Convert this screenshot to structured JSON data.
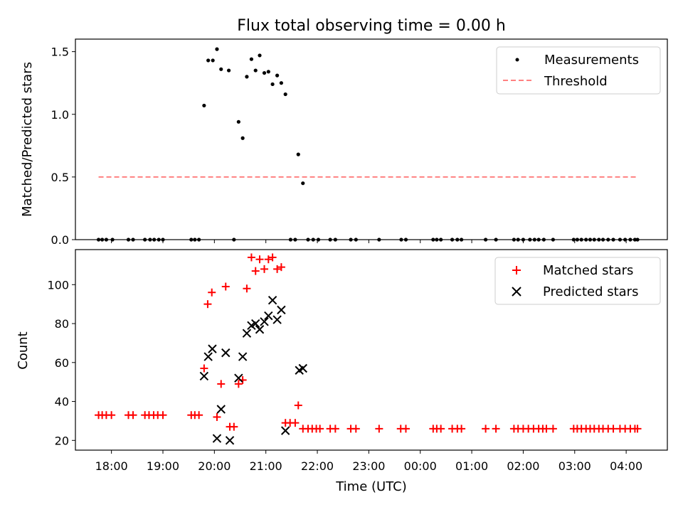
{
  "chart_data": [
    {
      "type": "scatter",
      "title": "Flux total observing time = 0.00 h",
      "xlabel": "",
      "ylabel": "Matched/Predicted stars",
      "xlim": [
        17.3,
        28.8
      ],
      "ylim": [
        0,
        1.6
      ],
      "yticks": [
        0.0,
        0.5,
        1.0,
        1.5
      ],
      "ytick_labels": [
        "0.0",
        "0.5",
        "1.0",
        "1.5"
      ],
      "legend_position": "top-right",
      "series": [
        {
          "name": "Measurements",
          "color": "#000000",
          "marker": "dot",
          "x": [
            17.75,
            17.82,
            17.9,
            18.02,
            18.33,
            18.42,
            18.65,
            18.75,
            18.83,
            18.92,
            19.0,
            19.55,
            19.62,
            19.7,
            19.8,
            19.88,
            19.97,
            20.05,
            20.13,
            20.28,
            20.38,
            20.47,
            20.55,
            20.63,
            20.72,
            20.8,
            20.88,
            20.97,
            21.05,
            21.13,
            21.22,
            21.3,
            21.38,
            21.48,
            21.57,
            21.63,
            21.72,
            21.82,
            21.92,
            22.02,
            22.25,
            22.35,
            22.65,
            22.75,
            23.2,
            23.63,
            23.72,
            24.25,
            24.32,
            24.4,
            24.62,
            24.72,
            24.8,
            25.27,
            25.47,
            25.82,
            25.9,
            26.0,
            26.13,
            26.22,
            26.3,
            26.4,
            26.58,
            26.98,
            27.05,
            27.13,
            27.22,
            27.3,
            27.38,
            27.47,
            27.55,
            27.65,
            27.75,
            27.88,
            27.98,
            28.08,
            28.17,
            28.22
          ],
          "y": [
            0,
            0,
            0,
            0,
            0,
            0,
            0,
            0,
            0,
            0,
            0,
            0,
            0,
            0,
            1.07,
            1.43,
            1.43,
            1.52,
            1.36,
            1.35,
            0,
            0.94,
            0.81,
            1.3,
            1.44,
            1.35,
            1.47,
            1.33,
            1.34,
            1.24,
            1.31,
            1.25,
            1.16,
            0,
            0,
            0.68,
            0.45,
            0,
            0,
            0,
            0,
            0,
            0,
            0,
            0,
            0,
            0,
            0,
            0,
            0,
            0,
            0,
            0,
            0,
            0,
            0,
            0,
            0,
            0,
            0,
            0,
            0,
            0,
            0,
            0,
            0,
            0,
            0,
            0,
            0,
            0,
            0,
            0,
            0,
            0,
            0,
            0,
            0
          ]
        },
        {
          "name": "Threshold",
          "color": "#ff8080",
          "style": "dashed",
          "x": [
            17.75,
            28.22
          ],
          "y": [
            0.5,
            0.5
          ]
        }
      ]
    },
    {
      "type": "scatter",
      "title": "",
      "xlabel": "Time (UTC)",
      "ylabel": "Count",
      "xlim": [
        17.3,
        28.8
      ],
      "ylim": [
        15,
        118
      ],
      "yticks": [
        20,
        40,
        60,
        80,
        100
      ],
      "ytick_labels": [
        "20",
        "40",
        "60",
        "80",
        "100"
      ],
      "xticks": [
        18,
        19,
        20,
        21,
        22,
        23,
        24,
        25,
        26,
        27,
        28
      ],
      "xtick_labels": [
        "18:00",
        "19:00",
        "20:00",
        "21:00",
        "22:00",
        "23:00",
        "00:00",
        "01:00",
        "02:00",
        "03:00",
        "04:00"
      ],
      "legend_position": "top-right",
      "series": [
        {
          "name": "Matched stars",
          "color": "#ff0000",
          "marker": "plus",
          "x": [
            17.75,
            17.82,
            17.9,
            18.0,
            18.33,
            18.42,
            18.65,
            18.73,
            18.82,
            18.9,
            19.0,
            19.55,
            19.62,
            19.7,
            19.8,
            19.87,
            19.95,
            20.05,
            20.13,
            20.22,
            20.3,
            20.38,
            20.47,
            20.55,
            20.63,
            20.72,
            20.8,
            20.88,
            20.97,
            21.05,
            21.13,
            21.22,
            21.3,
            21.38,
            21.47,
            21.57,
            21.63,
            21.72,
            21.82,
            21.9,
            21.98,
            22.05,
            22.25,
            22.35,
            22.65,
            22.75,
            23.2,
            23.62,
            23.72,
            24.25,
            24.32,
            24.4,
            24.62,
            24.72,
            24.8,
            25.27,
            25.47,
            25.82,
            25.9,
            26.0,
            26.1,
            26.2,
            26.3,
            26.38,
            26.45,
            26.58,
            26.98,
            27.05,
            27.13,
            27.22,
            27.3,
            27.38,
            27.47,
            27.55,
            27.65,
            27.75,
            27.88,
            27.98,
            28.08,
            28.17,
            28.22
          ],
          "y": [
            33,
            33,
            33,
            33,
            33,
            33,
            33,
            33,
            33,
            33,
            33,
            33,
            33,
            33,
            57,
            90,
            96,
            32,
            49,
            99,
            27,
            27,
            49,
            51,
            98,
            114,
            107,
            113,
            108,
            113,
            114,
            108,
            109,
            29,
            29,
            29,
            38,
            26,
            26,
            26,
            26,
            26,
            26,
            26,
            26,
            26,
            26,
            26,
            26,
            26,
            26,
            26,
            26,
            26,
            26,
            26,
            26,
            26,
            26,
            26,
            26,
            26,
            26,
            26,
            26,
            26,
            26,
            26,
            26,
            26,
            26,
            26,
            26,
            26,
            26,
            26,
            26,
            26,
            26,
            26,
            26
          ]
        },
        {
          "name": "Predicted stars",
          "color": "#000000",
          "marker": "x",
          "x": [
            19.8,
            19.88,
            19.96,
            20.05,
            20.13,
            20.22,
            20.3,
            20.47,
            20.55,
            20.63,
            20.72,
            20.8,
            20.88,
            20.97,
            21.05,
            21.13,
            21.22,
            21.3,
            21.38,
            21.65,
            21.72
          ],
          "y": [
            53,
            63,
            67,
            21,
            36,
            65,
            20,
            52,
            63,
            75,
            79,
            80,
            77,
            81,
            84,
            92,
            82,
            87,
            25,
            56,
            57
          ]
        }
      ]
    }
  ]
}
